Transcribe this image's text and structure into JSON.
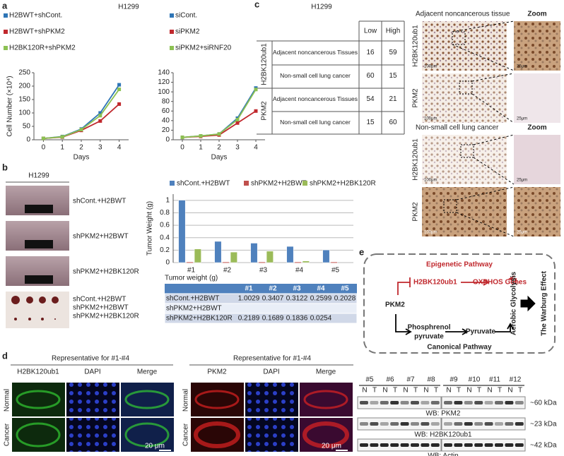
{
  "panel_labels": [
    "a",
    "b",
    "c",
    "d",
    "e"
  ],
  "chart_data": [
    {
      "type": "line",
      "title": "H1299",
      "xlabel": "Days",
      "ylabel": "Cell Number (×10⁴)",
      "x": [
        0,
        1,
        2,
        3,
        4
      ],
      "xlim": [
        -0.5,
        4.5
      ],
      "xticks": [
        0,
        1,
        2,
        3,
        4
      ],
      "ylim": [
        0,
        250
      ],
      "yticks": [
        0,
        50,
        100,
        150,
        200,
        250
      ],
      "series": [
        {
          "name": "H2BWT+shCont.",
          "color": "#2e75b6",
          "values": [
            5,
            12,
            40,
            100,
            205
          ]
        },
        {
          "name": "H2BWT+shPKM2",
          "color": "#c0282d",
          "values": [
            5,
            10,
            35,
            70,
            133
          ]
        },
        {
          "name": "H2BK120R+shPKM2",
          "color": "#8cc152",
          "values": [
            5,
            11,
            38,
            90,
            188
          ]
        }
      ]
    },
    {
      "type": "line",
      "title": "H1299",
      "xlabel": "Days",
      "x": [
        0,
        1,
        2,
        3,
        4
      ],
      "xlim": [
        -0.5,
        4.5
      ],
      "xticks": [
        0,
        1,
        2,
        3,
        4
      ],
      "ylim": [
        0,
        140
      ],
      "yticks": [
        0,
        20,
        40,
        60,
        80,
        100,
        120,
        140
      ],
      "series": [
        {
          "name": "siCont.",
          "color": "#2e75b6",
          "values": [
            5,
            8,
            12,
            45,
            108
          ]
        },
        {
          "name": "siPKM2",
          "color": "#c0282d",
          "values": [
            5,
            7,
            10,
            35,
            60
          ]
        },
        {
          "name": "siPKM2+siRNF20",
          "color": "#8cc152",
          "values": [
            5,
            8,
            12,
            42,
            105
          ]
        }
      ]
    },
    {
      "type": "bar",
      "ylabel": "Tumor Weight (g)",
      "categories": [
        "#1",
        "#2",
        "#3",
        "#4",
        "#5"
      ],
      "ylim": [
        0,
        1.1
      ],
      "yticks": [
        0,
        0.2,
        0.4,
        0.6,
        0.8,
        1
      ],
      "grid": true,
      "series": [
        {
          "name": "shCont.+H2BWT",
          "color": "#4f81bd",
          "values": [
            1.0029,
            0.3407,
            0.3122,
            0.2599,
            0.2028
          ]
        },
        {
          "name": "shPKM2+H2BWT",
          "color": "#c0504d",
          "values": [
            0.01,
            0.01,
            0.01,
            0.01,
            0.01
          ]
        },
        {
          "name": "shPKM2+H2BK120R",
          "color": "#9bbb59",
          "values": [
            0.2189,
            0.1689,
            0.1836,
            0.0254,
            null
          ]
        }
      ]
    }
  ],
  "panel_b": {
    "cell_line": "H1299",
    "mouse_labels": [
      "shCont.+H2BWT",
      "shPKM2+H2BWT",
      "shPKM2+H2BK120R"
    ],
    "tumor_labels": [
      "shCont.+H2BWT",
      "shPKM2+H2BWT",
      "shPKM2+H2BK120R"
    ],
    "table_title": "Tumor weight (g)"
  },
  "panel_c": {
    "table": {
      "columns": [
        "Low",
        "High"
      ],
      "groups": [
        {
          "name": "H2BK120ub1",
          "rows": [
            {
              "label": "Adjacent noncancerous Tissues",
              "values": [
                16,
                59
              ]
            },
            {
              "label": "Non-small cell lung cancer",
              "values": [
                60,
                15
              ]
            }
          ]
        },
        {
          "name": "PKM2",
          "rows": [
            {
              "label": "Adjacent noncancerous Tissues",
              "values": [
                54,
                21
              ]
            },
            {
              "label": "Non-small cell lung cancer",
              "values": [
                15,
                60
              ]
            }
          ]
        }
      ]
    },
    "images": {
      "top_title": "Adjacent noncancerous tissue",
      "bottom_title": "Non-small cell lung cancer",
      "zoom": "Zoom",
      "row_labels": [
        "H2BK120ub1",
        "PKM2"
      ],
      "scale_large": "100μm",
      "scale_small": "25μm"
    }
  },
  "panel_d": {
    "left": {
      "title": "Representative for #1-#4",
      "columns": [
        "H2BK120ub1",
        "DAPI",
        "Merge"
      ]
    },
    "right": {
      "title": "Representative for #1-#4",
      "columns": [
        "PKM2",
        "DAPI",
        "Merge"
      ]
    },
    "row_labels": [
      "Normal",
      "Cancer"
    ],
    "scale": "20 μm"
  },
  "panel_e": {
    "top": "Epigenetic Pathway",
    "bottom": "Canonical Pathway",
    "pkm2": "PKM2",
    "h2b": "H2BK120ub1",
    "oxphos": "OXPHOS Genes",
    "pep1": "Phosphrenol",
    "pep2": "pyruvate",
    "pyruvate": "Pyruvate",
    "glycolysis": "Aerobic Glycolysis",
    "warburg": "The Warburg Effect"
  },
  "western": {
    "lanes_left": [
      "#5",
      "#6",
      "#7",
      "#8"
    ],
    "lanes_right": [
      "#9",
      "#10",
      "#11",
      "#12"
    ],
    "nt": [
      "N",
      "T"
    ],
    "blots": [
      {
        "label": "WB: PKM2",
        "size": "~60 kDa"
      },
      {
        "label": "WB: H2BK120ub1",
        "size": "~23 kDa"
      },
      {
        "label": "WB: Actin",
        "size": "~42 kDa"
      }
    ]
  }
}
